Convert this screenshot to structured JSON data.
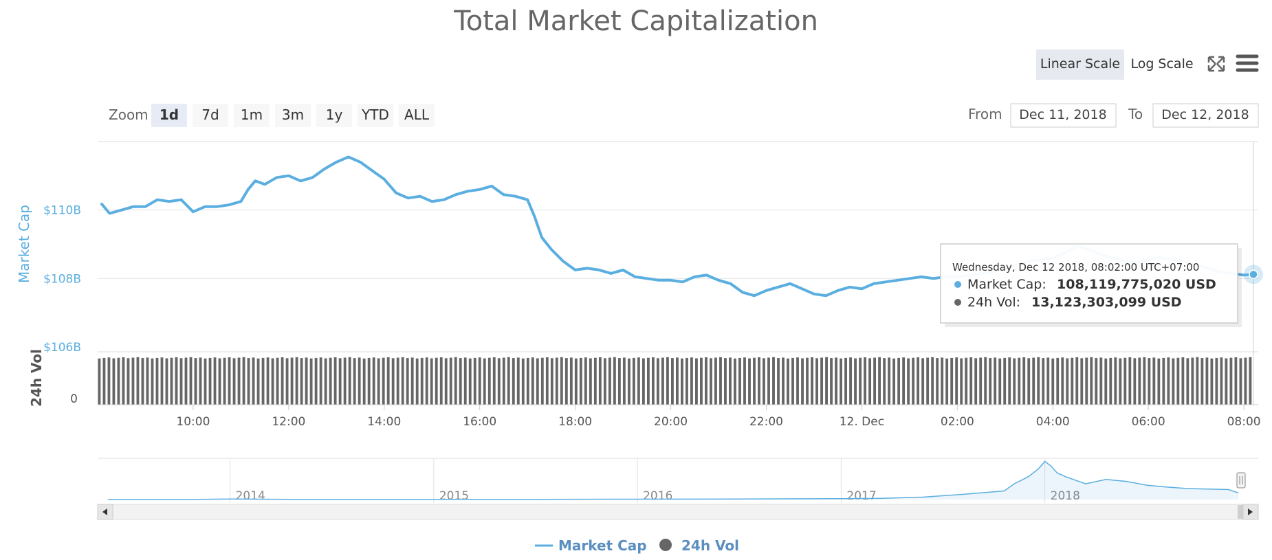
{
  "title": "Total Market Capitalization",
  "scale_buttons": {
    "linear": "Linear Scale",
    "log": "Log Scale",
    "active": "linear"
  },
  "icons": {
    "fullscreen": "fullscreen-icon",
    "menu": "hamburger-menu-icon"
  },
  "zoom": {
    "label": "Zoom",
    "buttons": [
      "1d",
      "7d",
      "1m",
      "3m",
      "1y",
      "YTD",
      "ALL"
    ],
    "active": "1d"
  },
  "range": {
    "from_label": "From",
    "from_value": "Dec 11, 2018",
    "to_label": "To",
    "to_value": "Dec 12, 2018"
  },
  "tooltip": {
    "date": "Wednesday, Dec 12 2018, 08:02:00 UTC+07:00",
    "market_cap_label": "Market Cap:",
    "market_cap_value": "108,119,775,020 USD",
    "vol_label": "24h Vol:",
    "vol_value": "13,123,303,099 USD"
  },
  "legend": {
    "market_cap": "Market Cap",
    "vol": "24h Vol"
  },
  "colors": {
    "market_cap": "#5aaee0",
    "vol": "#666666",
    "title": "#666666",
    "axis_text": "#555555"
  },
  "chart_data": [
    {
      "type": "line",
      "title": "Total Market Capitalization",
      "ylabel": "Market Cap",
      "ylim": [
        106,
        112
      ],
      "yticks": [
        {
          "v": 106,
          "label": "$106B"
        },
        {
          "v": 108,
          "label": "$108B"
        },
        {
          "v": 110,
          "label": "$110B"
        }
      ],
      "xlim": [
        8.0,
        32.2
      ],
      "xticks": [
        {
          "v": 10,
          "label": "10:00"
        },
        {
          "v": 12,
          "label": "12:00"
        },
        {
          "v": 14,
          "label": "14:00"
        },
        {
          "v": 16,
          "label": "16:00"
        },
        {
          "v": 18,
          "label": "18:00"
        },
        {
          "v": 20,
          "label": "20:00"
        },
        {
          "v": 22,
          "label": "22:00"
        },
        {
          "v": 24,
          "label": "12. Dec"
        },
        {
          "v": 26,
          "label": "02:00"
        },
        {
          "v": 28,
          "label": "04:00"
        },
        {
          "v": 30,
          "label": "06:00"
        },
        {
          "v": 32,
          "label": "08:00"
        }
      ],
      "series": [
        {
          "name": "Market Cap",
          "unit": "billion USD",
          "x": [
            8.07,
            8.25,
            8.5,
            8.75,
            9.0,
            9.25,
            9.5,
            9.75,
            10.0,
            10.25,
            10.5,
            10.75,
            11.0,
            11.15,
            11.3,
            11.5,
            11.75,
            12.0,
            12.25,
            12.5,
            12.75,
            13.0,
            13.25,
            13.5,
            13.75,
            14.0,
            14.25,
            14.5,
            14.75,
            15.0,
            15.25,
            15.5,
            15.75,
            16.0,
            16.25,
            16.5,
            16.75,
            17.0,
            17.15,
            17.3,
            17.5,
            17.75,
            18.0,
            18.25,
            18.5,
            18.75,
            19.0,
            19.25,
            19.5,
            19.75,
            20.0,
            20.25,
            20.5,
            20.75,
            21.0,
            21.25,
            21.5,
            21.75,
            22.0,
            22.25,
            22.5,
            22.75,
            23.0,
            23.25,
            23.5,
            23.75,
            24.0,
            24.25,
            24.5,
            24.75,
            25.0,
            25.25,
            25.5,
            25.75,
            26.0,
            26.25,
            26.5,
            26.75,
            27.0,
            27.25,
            27.5,
            27.75,
            28.0,
            28.25,
            28.5,
            28.75,
            29.0,
            29.25,
            29.5,
            29.75,
            30.0,
            30.25,
            30.5,
            30.75,
            31.0,
            31.25,
            31.5,
            31.75,
            32.0,
            32.2
          ],
          "values": [
            110.2,
            109.9,
            110.0,
            110.1,
            110.1,
            110.3,
            110.25,
            110.3,
            109.95,
            110.1,
            110.1,
            110.15,
            110.25,
            110.6,
            110.85,
            110.75,
            110.95,
            111.0,
            110.85,
            110.95,
            111.2,
            111.4,
            111.55,
            111.4,
            111.15,
            110.9,
            110.5,
            110.35,
            110.4,
            110.25,
            110.3,
            110.45,
            110.55,
            110.6,
            110.7,
            110.45,
            110.4,
            110.3,
            109.8,
            109.2,
            108.85,
            108.5,
            108.25,
            108.3,
            108.25,
            108.15,
            108.25,
            108.05,
            108.0,
            107.95,
            107.95,
            107.9,
            108.05,
            108.1,
            107.95,
            107.85,
            107.6,
            107.5,
            107.65,
            107.75,
            107.85,
            107.7,
            107.55,
            107.5,
            107.65,
            107.75,
            107.7,
            107.85,
            107.9,
            107.95,
            108.0,
            108.05,
            108.0,
            108.05,
            108.05,
            108.1,
            108.15,
            108.2,
            108.3,
            108.4,
            108.5,
            108.55,
            108.6,
            108.75,
            108.95,
            108.85,
            108.7,
            108.6,
            108.5,
            108.45,
            108.55,
            108.6,
            108.55,
            108.5,
            108.4,
            108.3,
            108.2,
            108.15,
            108.1,
            108.12
          ]
        }
      ],
      "highlight_point": {
        "x": 32.2,
        "value": 108.12
      }
    },
    {
      "type": "bar",
      "ylabel": "24h Vol",
      "ytick_label": "0",
      "bar_count": 240,
      "relative_height": 0.92,
      "series_name": "24h Vol"
    },
    {
      "type": "area",
      "role": "navigator",
      "xticks": [
        "2014",
        "2015",
        "2016",
        "2017",
        "2018"
      ],
      "x": [
        2013.4,
        2013.8,
        2014.0,
        2014.3,
        2014.6,
        2015.0,
        2015.5,
        2016.0,
        2016.5,
        2017.0,
        2017.2,
        2017.4,
        2017.6,
        2017.8,
        2017.85,
        2017.92,
        2017.97,
        2018.0,
        2018.03,
        2018.06,
        2018.1,
        2018.2,
        2018.3,
        2018.4,
        2018.5,
        2018.6,
        2018.7,
        2018.8,
        2018.9,
        2018.95
      ],
      "values": [
        1.5,
        1.8,
        10,
        5,
        5,
        4,
        4,
        7,
        12,
        18,
        25,
        50,
        110,
        180,
        330,
        480,
        650,
        800,
        700,
        560,
        480,
        330,
        420,
        380,
        300,
        260,
        230,
        220,
        210,
        140
      ]
    }
  ]
}
